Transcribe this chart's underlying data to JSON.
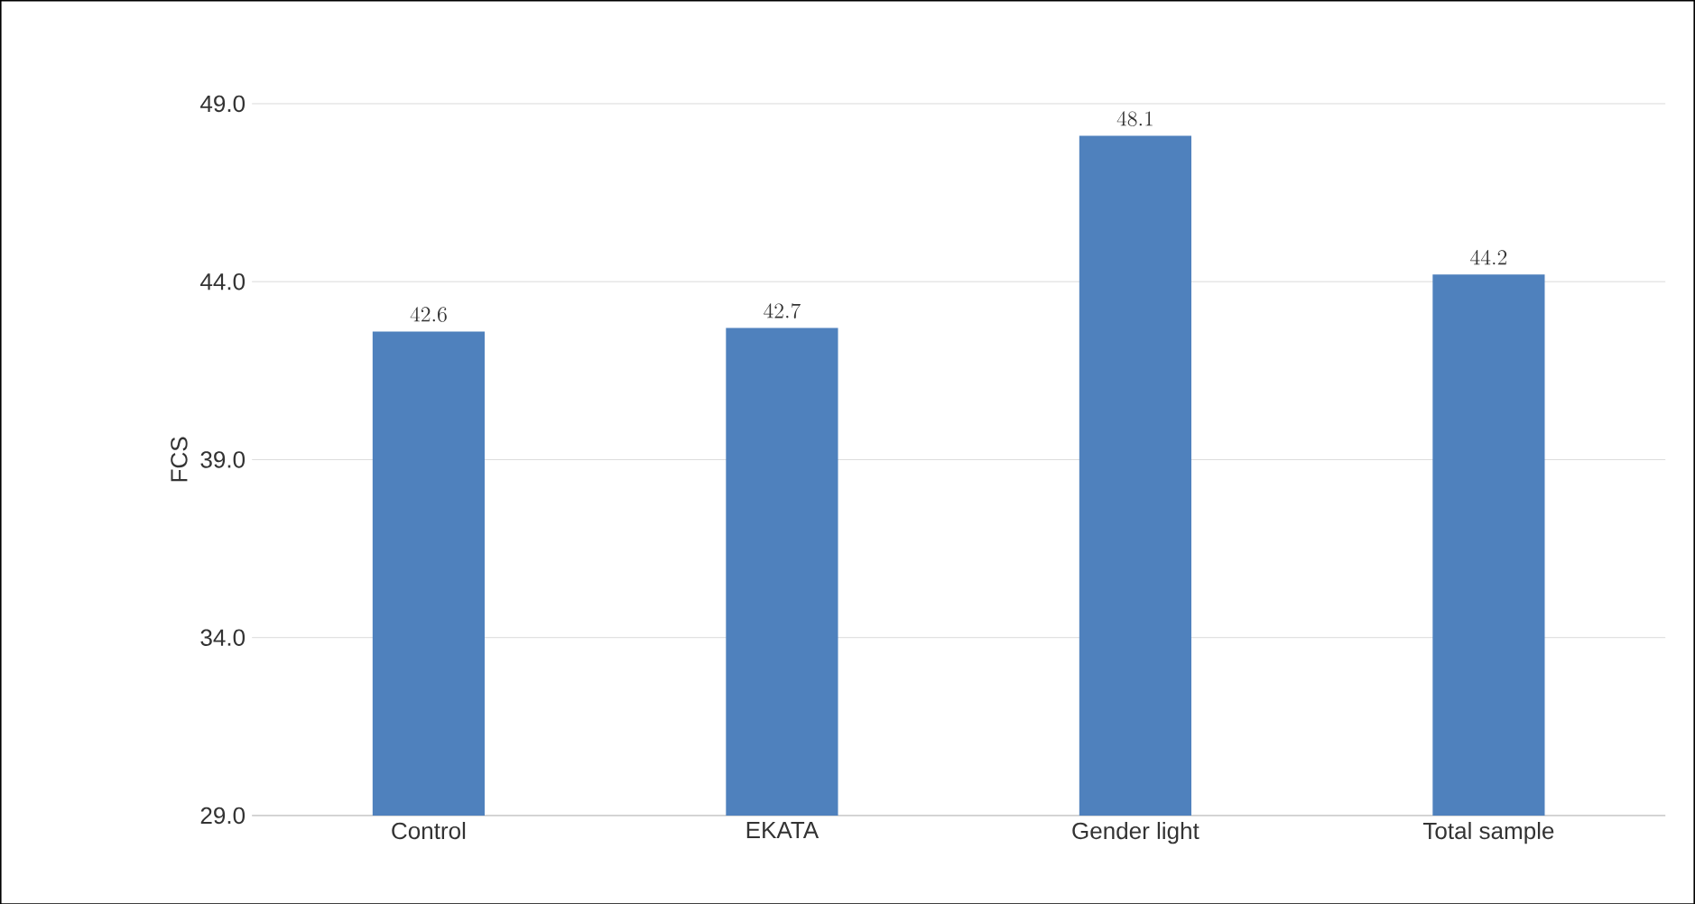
{
  "chart_data": {
    "type": "bar",
    "ylabel": "FCS",
    "categories": [
      "Control",
      "EKATA",
      "Gender light",
      "Total sample"
    ],
    "values": [
      42.6,
      42.7,
      48.1,
      44.2
    ],
    "color": "#4f81bd",
    "ylim": [
      29,
      49
    ],
    "yticks": [
      {
        "value": 29,
        "label": "29.0"
      },
      {
        "value": 34,
        "label": "34.0"
      },
      {
        "value": 39,
        "label": "39.0"
      },
      {
        "value": 44,
        "label": "44.0"
      },
      {
        "value": 49,
        "label": "49.0"
      }
    ],
    "grid": "y",
    "data_labels": true
  }
}
